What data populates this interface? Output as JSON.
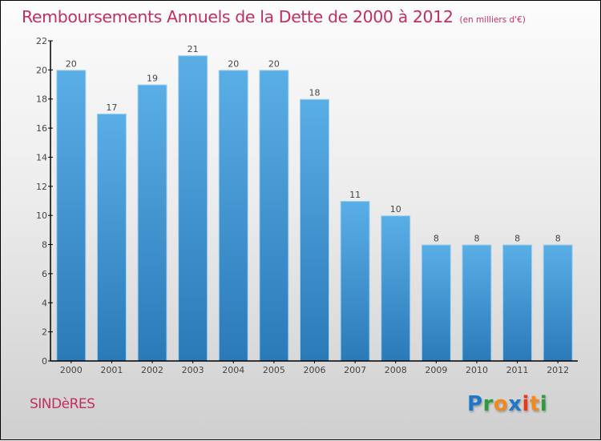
{
  "chart_data": {
    "type": "bar",
    "title": "Remboursements Annuels de la Dette de 2000 à 2012",
    "subtitle": "(en milliers d'€)",
    "categories": [
      "2000",
      "2001",
      "2002",
      "2003",
      "2004",
      "2005",
      "2006",
      "2007",
      "2008",
      "2009",
      "2010",
      "2011",
      "2012"
    ],
    "values": [
      20,
      17,
      19,
      21,
      20,
      20,
      18,
      11,
      10,
      8,
      8,
      8,
      8
    ],
    "xlabel": "",
    "ylabel": "",
    "ylim": [
      0,
      22
    ],
    "yticks": [
      0,
      2,
      4,
      6,
      8,
      10,
      12,
      14,
      16,
      18,
      20,
      22
    ],
    "grid": false,
    "legend": "none",
    "bar_color_top": "#5aaee6",
    "bar_color_bottom": "#2a7ab8",
    "data_labels": true
  },
  "footer": {
    "commune": "SINDèRES",
    "logo_letters": [
      {
        "char": "P",
        "color": "#1f77c9"
      },
      {
        "char": "r",
        "color": "#2e9b3a"
      },
      {
        "char": "o",
        "color": "#f08a1c"
      },
      {
        "char": "x",
        "color": "#1f77c9"
      },
      {
        "char": "i",
        "color": "#e83a1a"
      },
      {
        "char": "t",
        "color": "#f08a1c"
      },
      {
        "char": "i",
        "color": "#2e9b3a"
      }
    ]
  },
  "colors": {
    "title": "#c0305f",
    "axis": "#000000",
    "text": "#444444"
  }
}
